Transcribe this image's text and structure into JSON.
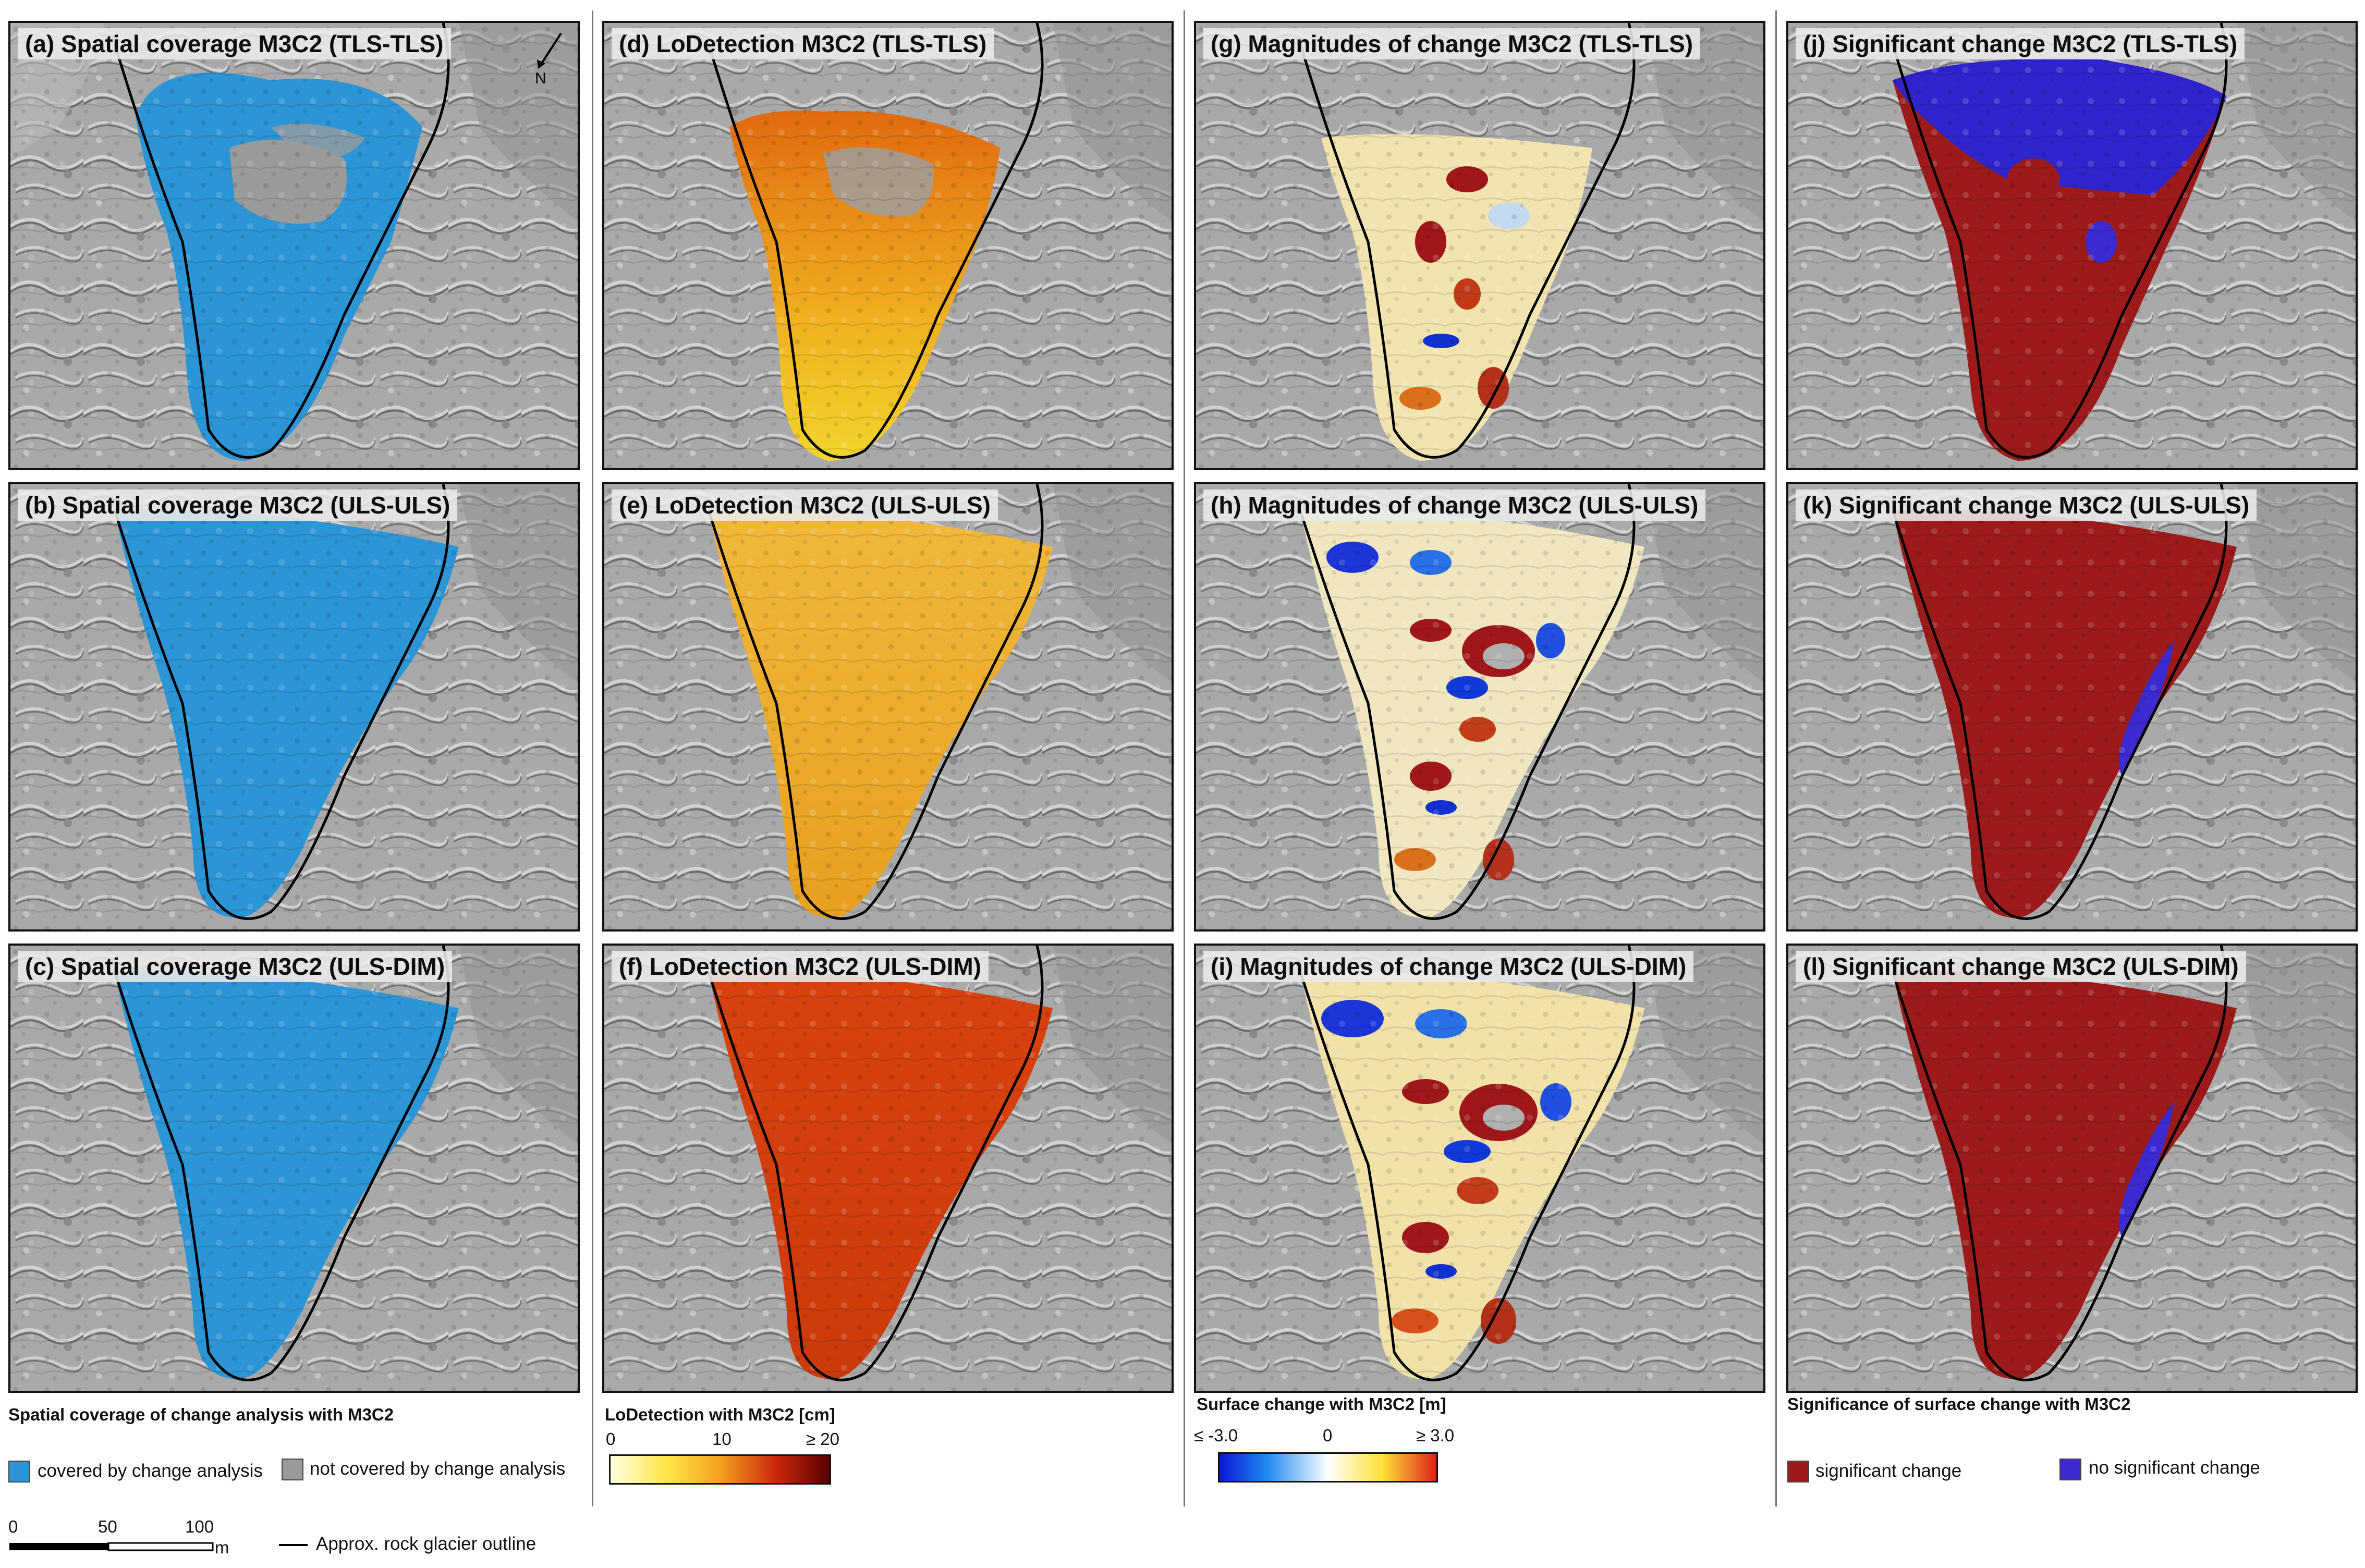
{
  "panels": {
    "a": {
      "title": "(a) Spatial coverage M3C2 (TLS-TLS)"
    },
    "b": {
      "title": "(b) Spatial coverage M3C2 (ULS-ULS)"
    },
    "c": {
      "title": "(c) Spatial coverage M3C2 (ULS-DIM)"
    },
    "d": {
      "title": "(d) LoDetection M3C2 (TLS-TLS)"
    },
    "e": {
      "title": "(e) LoDetection M3C2 (ULS-ULS)"
    },
    "f": {
      "title": "(f) LoDetection M3C2  (ULS-DIM)"
    },
    "g": {
      "title": "(g) Magnitudes of change M3C2 (TLS-TLS)"
    },
    "h": {
      "title": "(h) Magnitudes of change M3C2 (ULS-ULS)"
    },
    "i": {
      "title": "(i) Magnitudes of change M3C2 (ULS-DIM)"
    },
    "j": {
      "title": "(j) Significant change M3C2 (TLS-TLS)"
    },
    "k": {
      "title": "(k) Significant change M3C2 (ULS-ULS)"
    },
    "l": {
      "title": "(l) Significant change M3C2 (ULS-DIM)"
    }
  },
  "north_label": "N",
  "legends": {
    "coverage": {
      "title": "Spatial coverage of change analysis with M3C2",
      "covered_label": "covered by change analysis",
      "not_covered_label": "not covered by change analysis",
      "covered_color": "#2b95d6",
      "not_covered_color": "#9a9a9a"
    },
    "lod": {
      "title": "LoDetection with M3C2 [cm]",
      "ticks": [
        "0",
        "10",
        "≥ 20"
      ]
    },
    "change": {
      "title": "Surface change with M3C2 [m]",
      "ticks": [
        "≤ -3.0",
        "0",
        "≥ 3.0"
      ]
    },
    "significance": {
      "title": "Significance of surface change with M3C2",
      "significant_label": "significant change",
      "not_significant_label": "no significant change",
      "significant_color": "#9c1a1a",
      "not_significant_color": "#3a2ad0"
    }
  },
  "scalebar": {
    "ticks": [
      "0",
      "50",
      "100"
    ],
    "unit": "m"
  },
  "outline_label": "Approx. rock glacier outline"
}
